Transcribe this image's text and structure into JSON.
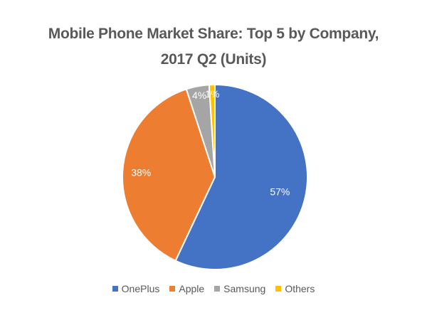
{
  "chart_data": {
    "type": "pie",
    "title_lines": [
      "Mobile Phone Market Share: Top 5 by Company,",
      "2017 Q2 (Units)"
    ],
    "categories": [
      "OnePlus",
      "Apple",
      "Samsung",
      "Others"
    ],
    "values": [
      57,
      38,
      4,
      1
    ],
    "data_labels": [
      "57%",
      "38%",
      "4%",
      "1%"
    ],
    "colors": [
      "#4472C4",
      "#ED7D31",
      "#A5A5A5",
      "#FFC000"
    ],
    "start": "top, clockwise",
    "legend_position": "bottom"
  }
}
